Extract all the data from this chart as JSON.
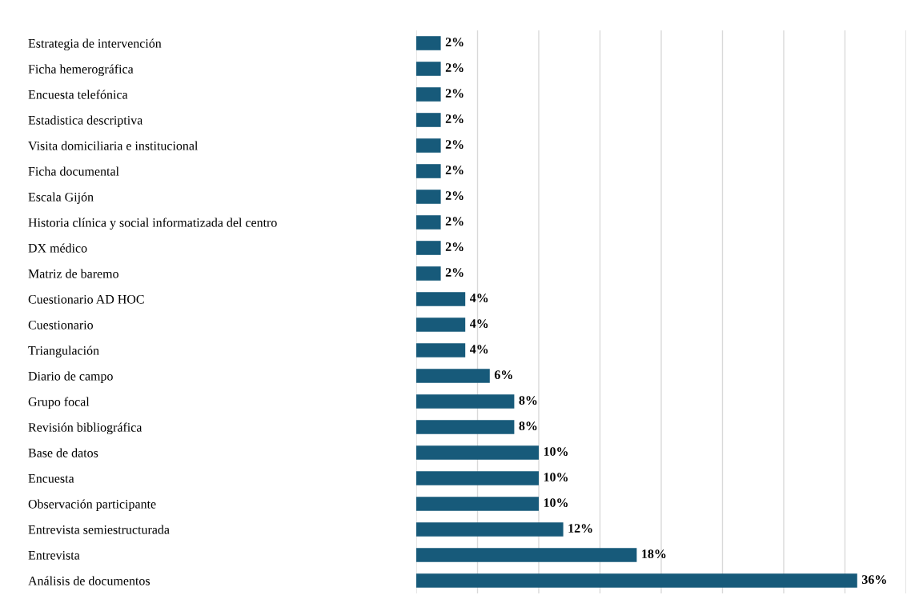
{
  "chart_data": {
    "type": "bar",
    "orientation": "horizontal",
    "categories": [
      "Estrategia de intervención",
      "Ficha hemerográfica",
      "Encuesta telefónica",
      "Estadistica descriptiva",
      "Visita domiciliaria e institucional",
      "Ficha documental",
      "Escala Gijón",
      "Historia clínica y social informatizada del centro",
      "DX médico",
      "Matriz de baremo",
      "Cuestionario AD HOC",
      "Cuestionario",
      "Triangulación",
      "Diario de campo",
      "Grupo focal",
      "Revisión bibliográfica",
      "Base de datos",
      "Encuesta",
      "Observación participante",
      "Entrevista semiestructurada",
      "Entrevista",
      "Análisis de documentos"
    ],
    "values": [
      2,
      2,
      2,
      2,
      2,
      2,
      2,
      2,
      2,
      2,
      4,
      4,
      4,
      6,
      8,
      8,
      10,
      10,
      10,
      12,
      18,
      36
    ],
    "value_labels": [
      "2%",
      "2%",
      "2%",
      "2%",
      "2%",
      "2%",
      "2%",
      "2%",
      "2%",
      "2%",
      "4%",
      "4%",
      "4%",
      "6%",
      "8%",
      "8%",
      "10%",
      "10%",
      "10%",
      "12%",
      "18%",
      "36%"
    ],
    "color": "#175a7a",
    "xlim": [
      0,
      40
    ],
    "xticks": [
      {
        "value": 0,
        "label": null
      },
      {
        "value": 5,
        "label": null
      },
      {
        "value": 10,
        "label": null
      },
      {
        "value": 15,
        "label": null
      },
      {
        "value": 20,
        "label": null
      },
      {
        "value": 25,
        "label": null
      },
      {
        "value": 30,
        "label": null
      },
      {
        "value": 35,
        "label": null
      },
      {
        "value": 40,
        "label": null
      }
    ],
    "grid": "x",
    "tick_labels": "y",
    "legend": false
  }
}
